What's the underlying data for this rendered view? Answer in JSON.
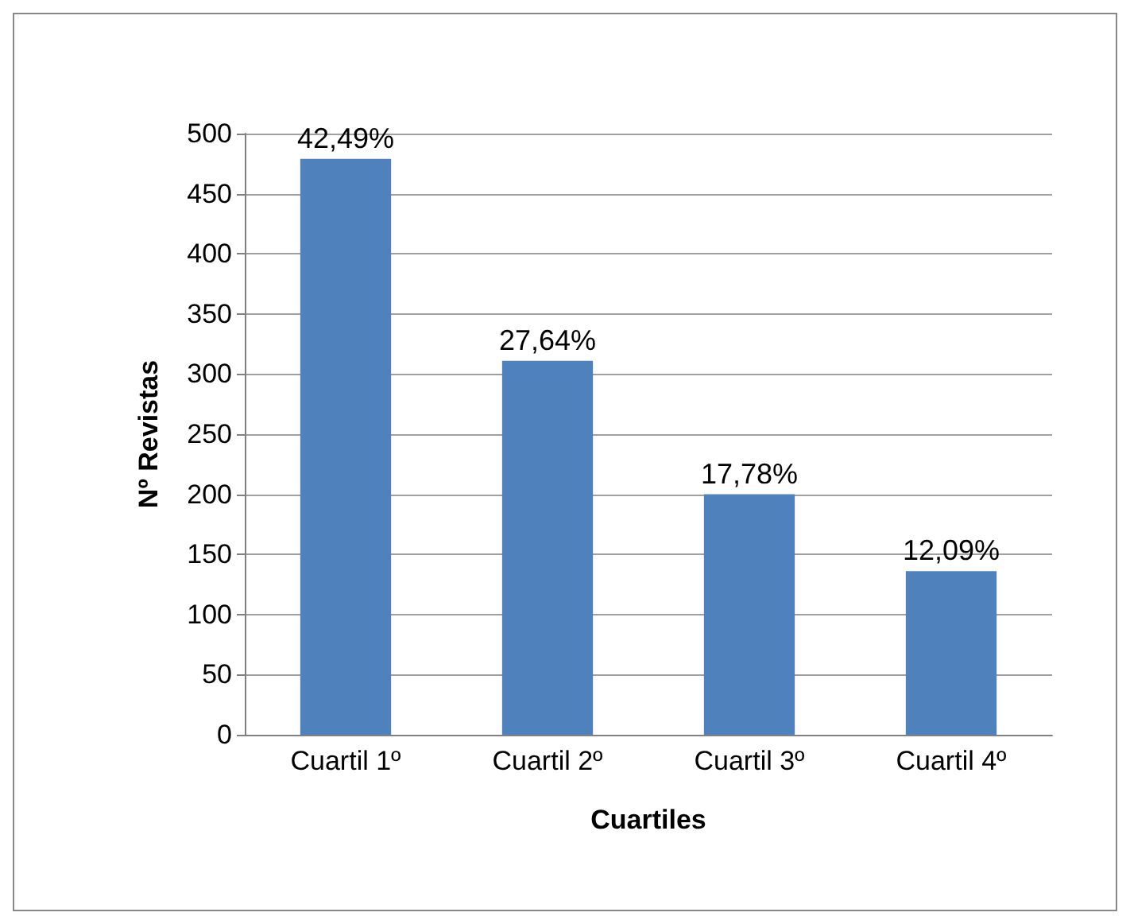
{
  "chart_data": {
    "type": "bar",
    "xlabel": "Cuartiles",
    "ylabel": "Nº Revistas",
    "categories": [
      "Cuartil 1º",
      "Cuartil 2º",
      "Cuartil 3º",
      "Cuartil 4º"
    ],
    "values": [
      479,
      311,
      200,
      136
    ],
    "annotations": [
      {
        "text": "42,49%",
        "x": "Cuartil 1º",
        "y": 479
      },
      {
        "text": "27,64%",
        "x": "Cuartil 2º",
        "y": 311
      },
      {
        "text": "17,78%",
        "x": "Cuartil 3º",
        "y": 200
      },
      {
        "text": "12,09%",
        "x": "Cuartil 4º",
        "y": 136
      }
    ],
    "color": "#4f81bd",
    "ylim": [
      0,
      500
    ],
    "yticks": [
      0,
      50,
      100,
      150,
      200,
      250,
      300,
      350,
      400,
      450,
      500
    ],
    "grid": "y"
  }
}
